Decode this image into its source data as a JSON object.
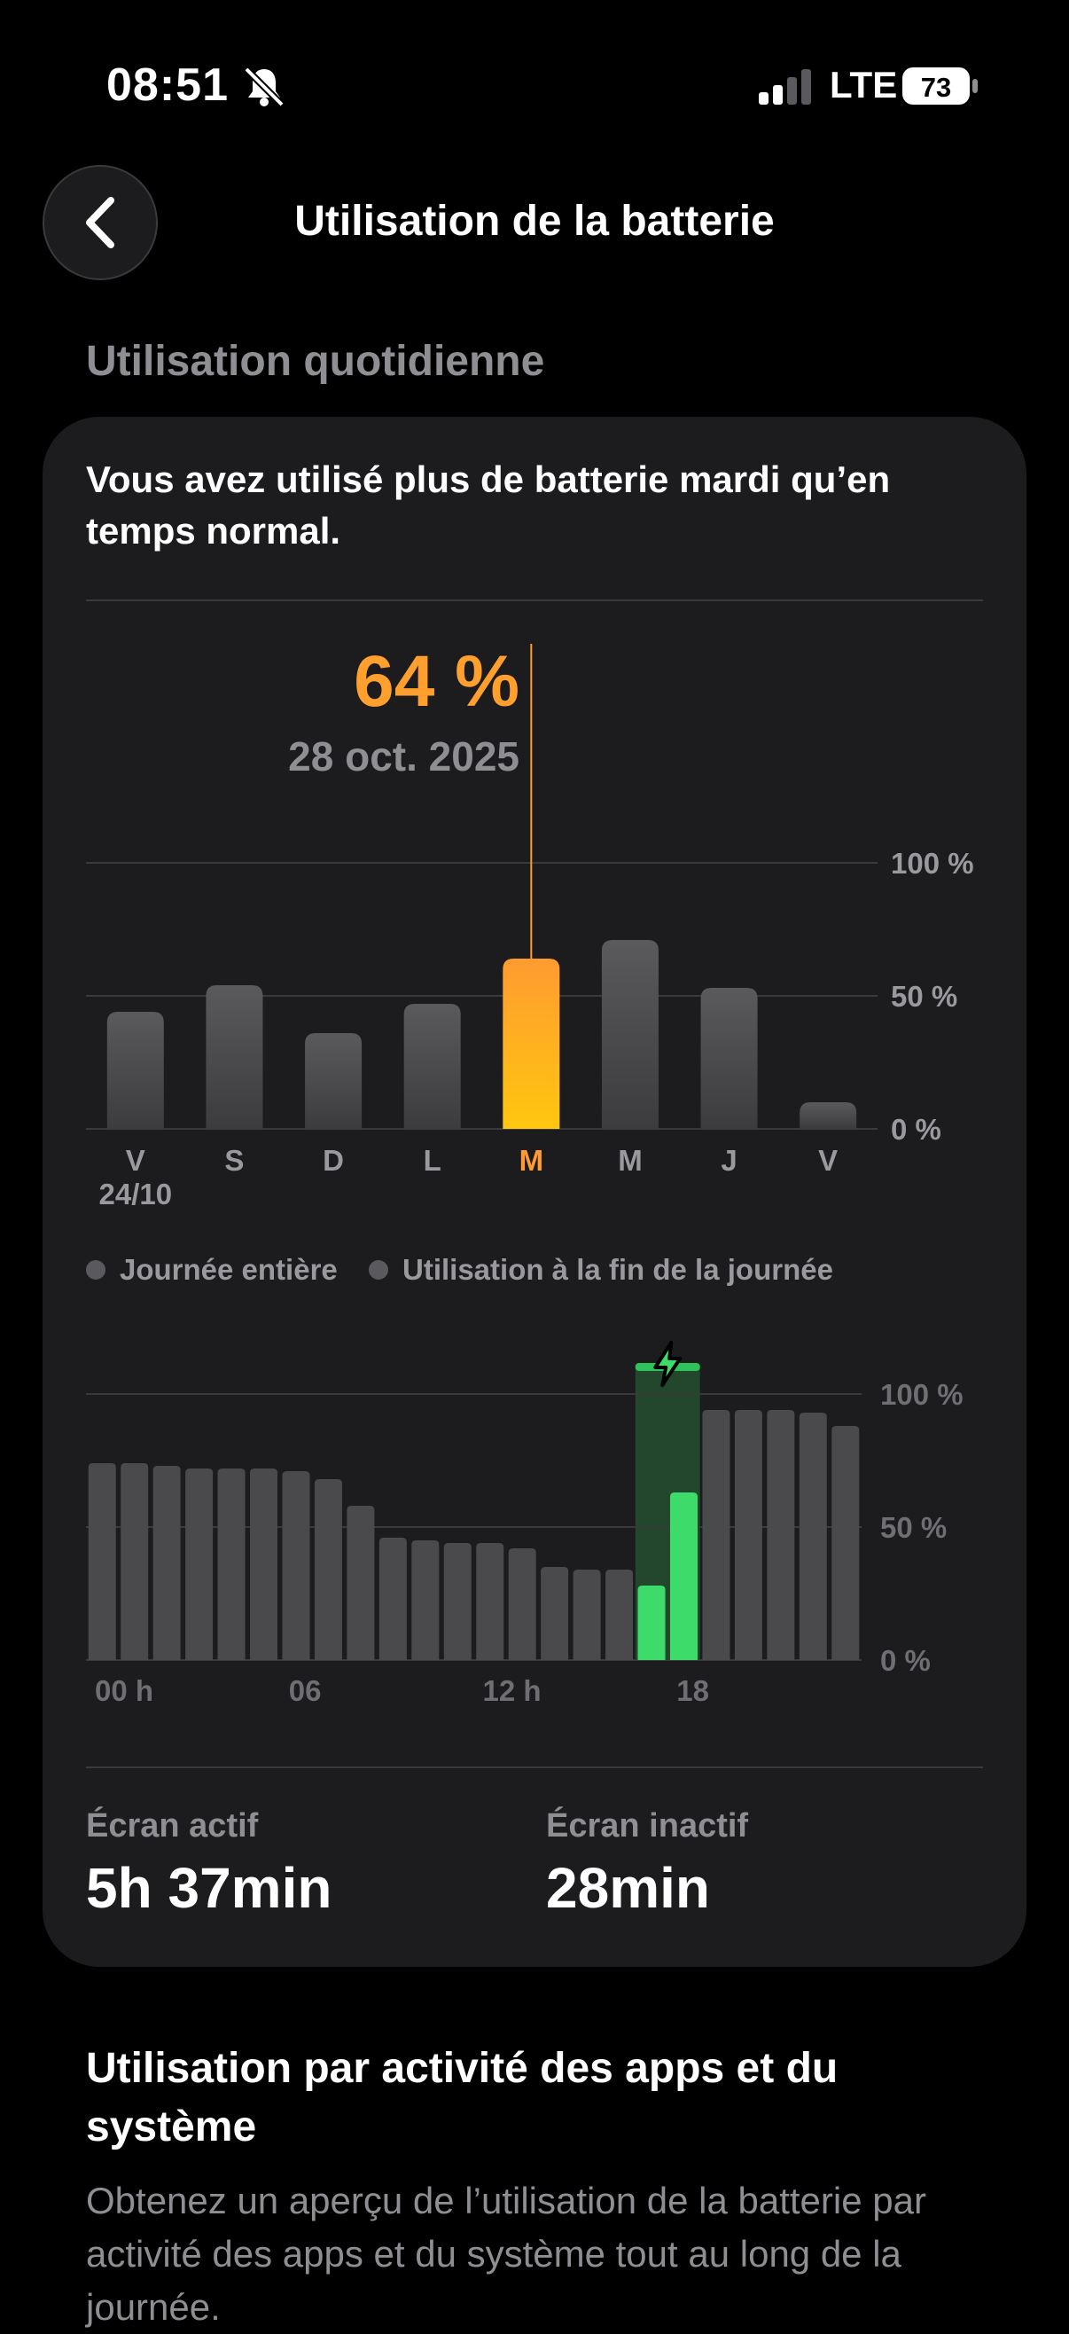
{
  "status_bar": {
    "time": "08:51",
    "network": "LTE",
    "battery_level": "73"
  },
  "nav": {
    "title": "Utilisation de la batterie",
    "back_icon": "chevron-left-icon"
  },
  "daily": {
    "section_label": "Utilisation quotidienne",
    "headline": "Vous avez utilisé plus de batterie mardi qu’en temps normal.",
    "selected_value": "64 %",
    "selected_date": "28 oct. 2025"
  },
  "chart_data": [
    {
      "type": "bar",
      "categories": [
        "V",
        "S",
        "D",
        "L",
        "M",
        "M",
        "J",
        "V"
      ],
      "category_sublabels": [
        "24/10",
        "",
        "",
        "",
        "",
        "",
        "",
        ""
      ],
      "values": [
        44,
        54,
        36,
        47,
        64,
        71,
        53,
        10
      ],
      "selected_index": 4,
      "y_ticks": [
        "100 %",
        "50 %",
        "0 %"
      ],
      "ylim": [
        0,
        100
      ],
      "colors": {
        "bar": "#4a4a4c",
        "selected_top": "#ff9b30",
        "selected_bottom": "#ffc70f",
        "grid": "#3a3a3c"
      }
    },
    {
      "type": "bar",
      "values": [
        74,
        74,
        73,
        72,
        72,
        72,
        71,
        68,
        58,
        46,
        45,
        44,
        44,
        42,
        35,
        34,
        34,
        28,
        63,
        94,
        94,
        94,
        93,
        88
      ],
      "charging_indices": [
        17,
        18
      ],
      "x_tick_labels": [
        "00 h",
        "06",
        "12 h",
        "18"
      ],
      "y_ticks": [
        "100 %",
        "50 %",
        "0 %"
      ],
      "ylim": [
        0,
        100
      ],
      "colors": {
        "bar": "#4a4a4c",
        "charging": "#3ddc6a",
        "charging_band": "#23472c",
        "charging_band_top": "#2ec25a"
      }
    }
  ],
  "legend": {
    "items": [
      "Journée entière",
      "Utilisation à la fin de la journée"
    ]
  },
  "screen": {
    "active_label": "Écran actif",
    "active_value": "5h 37min",
    "inactive_label": "Écran inactif",
    "inactive_value": "28min"
  },
  "activity_section": {
    "title": "Utilisation par activité des apps et du système",
    "description": "Obtenez un aperçu de l’utilisation de la batterie par activité des apps et du système tout au long de la journée."
  }
}
